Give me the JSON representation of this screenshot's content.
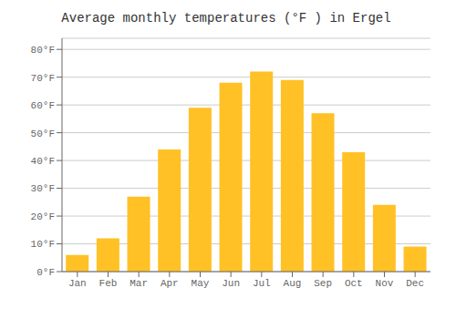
{
  "chart_data": {
    "type": "bar",
    "title": "Average monthly temperatures (°F ) in Ergel",
    "categories": [
      "Jan",
      "Feb",
      "Mar",
      "Apr",
      "May",
      "Jun",
      "Jul",
      "Aug",
      "Sep",
      "Oct",
      "Nov",
      "Dec"
    ],
    "values": [
      6,
      12,
      27,
      44,
      59,
      68,
      72,
      69,
      57,
      43,
      24,
      9
    ],
    "color": "#FFC125",
    "ylim": [
      0,
      84
    ],
    "yticks": [
      {
        "value": 0,
        "label": "0°F"
      },
      {
        "value": 10,
        "label": "10°F"
      },
      {
        "value": 20,
        "label": "20°F"
      },
      {
        "value": 30,
        "label": "30°F"
      },
      {
        "value": 40,
        "label": "40°F"
      },
      {
        "value": 50,
        "label": "50°F"
      },
      {
        "value": 60,
        "label": "60°F"
      },
      {
        "value": 70,
        "label": "70°F"
      },
      {
        "value": 80,
        "label": "80°F"
      }
    ],
    "grid": true
  }
}
